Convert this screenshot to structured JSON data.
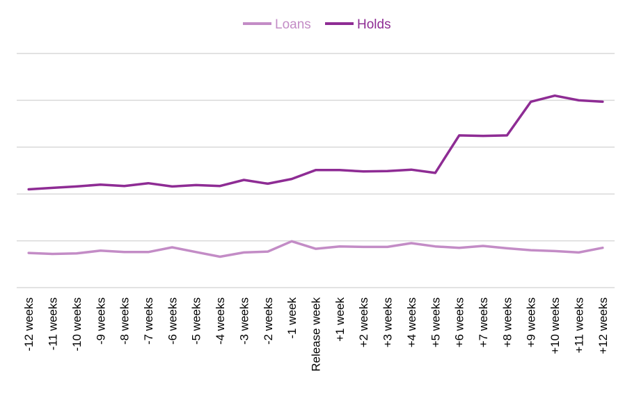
{
  "chart_data": {
    "type": "line",
    "categories": [
      "-12 weeks",
      "-11 weeks",
      "-10 weeks",
      "-9 weeks",
      "-8 weeks",
      "-7 weeks",
      "-6 weeks",
      "-5 weeks",
      "-4 weeks",
      "-3 weeks",
      "-2 weeks",
      "-1 week",
      "Release week",
      "+1 week",
      "+2 weeks",
      "+3 weeks",
      "+4 weeks",
      "+5 weeks",
      "+6 weeks",
      "+7 weeks",
      "+8 weeks",
      "+9 weeks",
      "+10 weeks",
      "+11 weeks",
      "+12 weeks"
    ],
    "series": [
      {
        "name": "Loans",
        "color": "#c38cc6",
        "values": [
          0.74,
          0.72,
          0.73,
          0.79,
          0.76,
          0.76,
          0.86,
          0.76,
          0.66,
          0.75,
          0.77,
          0.99,
          0.83,
          0.88,
          0.87,
          0.87,
          0.95,
          0.88,
          0.85,
          0.89,
          0.84,
          0.8,
          0.78,
          0.75,
          0.85
        ]
      },
      {
        "name": "Holds",
        "color": "#8e2c94",
        "values": [
          2.1,
          2.13,
          2.16,
          2.2,
          2.17,
          2.23,
          2.16,
          2.19,
          2.17,
          2.3,
          2.22,
          2.32,
          2.51,
          2.51,
          2.48,
          2.49,
          2.52,
          2.45,
          3.25,
          3.24,
          3.25,
          3.97,
          4.1,
          4.0,
          3.97
        ]
      }
    ],
    "ylim": [
      0,
      5
    ],
    "y_gridlines": [
      0,
      1,
      2,
      3,
      4,
      5
    ],
    "y_tick_labels_shown": false,
    "grid": true,
    "legend_position": "top-center",
    "title": "",
    "xlabel": "",
    "ylabel": ""
  }
}
